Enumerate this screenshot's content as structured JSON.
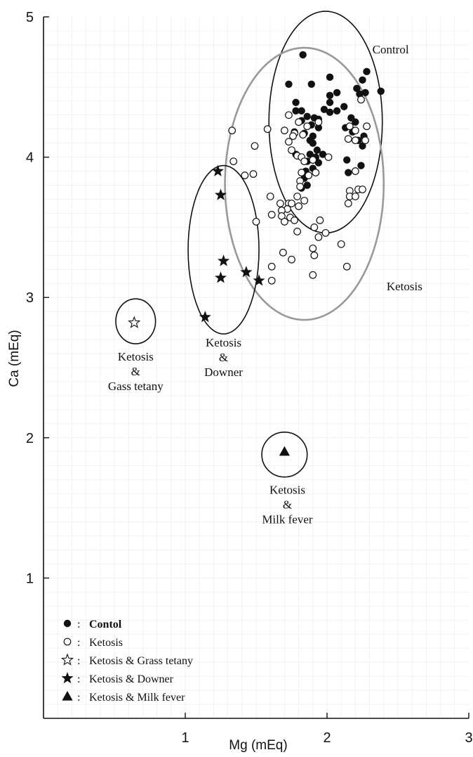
{
  "chart_data": {
    "type": "scatter",
    "title": "",
    "xlabel": "Mg (mEq)",
    "ylabel": "Ca (mEq)",
    "xlim": [
      0,
      3
    ],
    "ylim": [
      0,
      5
    ],
    "x_ticks": [
      "1",
      "2",
      "3"
    ],
    "y_ticks": [
      "1",
      "2",
      "3",
      "4",
      "5"
    ],
    "grid": true,
    "series": [
      {
        "name": "Contol",
        "marker": "filled-circle",
        "color": "#111111",
        "points": [
          [
            1.83,
            4.73
          ],
          [
            1.73,
            4.52
          ],
          [
            1.89,
            4.52
          ],
          [
            2.02,
            4.57
          ],
          [
            2.28,
            4.61
          ],
          [
            2.25,
            4.55
          ],
          [
            2.21,
            4.49
          ],
          [
            2.38,
            4.47
          ],
          [
            2.23,
            4.45
          ],
          [
            2.27,
            4.46
          ],
          [
            2.02,
            4.44
          ],
          [
            2.07,
            4.46
          ],
          [
            2.02,
            4.39
          ],
          [
            1.78,
            4.39
          ],
          [
            1.78,
            4.33
          ],
          [
            1.82,
            4.33
          ],
          [
            1.98,
            4.34
          ],
          [
            2.02,
            4.32
          ],
          [
            2.07,
            4.33
          ],
          [
            2.12,
            4.36
          ],
          [
            1.86,
            4.29
          ],
          [
            1.91,
            4.28
          ],
          [
            1.82,
            4.26
          ],
          [
            1.94,
            4.27
          ],
          [
            2.17,
            4.28
          ],
          [
            2.2,
            4.25
          ],
          [
            1.89,
            4.23
          ],
          [
            2.13,
            4.21
          ],
          [
            1.94,
            4.21
          ],
          [
            1.77,
            4.18
          ],
          [
            1.84,
            4.17
          ],
          [
            1.9,
            4.15
          ],
          [
            2.18,
            4.18
          ],
          [
            2.26,
            4.15
          ],
          [
            1.88,
            4.12
          ],
          [
            2.22,
            4.12
          ],
          [
            1.78,
            4.02
          ],
          [
            1.9,
            4.1
          ],
          [
            1.93,
            4.05
          ],
          [
            1.88,
            4.02
          ],
          [
            1.92,
            4.0
          ],
          [
            1.86,
            3.97
          ],
          [
            1.94,
            3.96
          ],
          [
            1.97,
            4.02
          ],
          [
            2.25,
            4.08
          ],
          [
            1.9,
            3.92
          ],
          [
            1.85,
            3.9
          ],
          [
            1.84,
            3.85
          ],
          [
            1.86,
            3.8
          ],
          [
            1.82,
            3.78
          ],
          [
            2.15,
            3.89
          ],
          [
            2.24,
            3.94
          ],
          [
            2.14,
            3.98
          ]
        ]
      },
      {
        "name": "Ketosis",
        "marker": "open-circle",
        "color": "#111111",
        "points": [
          [
            1.33,
            4.19
          ],
          [
            1.58,
            4.2
          ],
          [
            1.73,
            4.3
          ],
          [
            1.8,
            4.25
          ],
          [
            1.86,
            4.22
          ],
          [
            1.94,
            4.25
          ],
          [
            1.7,
            4.19
          ],
          [
            1.77,
            4.17
          ],
          [
            1.73,
            4.11
          ],
          [
            1.76,
            4.15
          ],
          [
            1.83,
            4.16
          ],
          [
            1.75,
            4.05
          ],
          [
            1.79,
            4.01
          ],
          [
            1.82,
            4.0
          ],
          [
            2.01,
            4.0
          ],
          [
            2.16,
            4.22
          ],
          [
            2.2,
            4.19
          ],
          [
            2.15,
            4.13
          ],
          [
            2.2,
            4.12
          ],
          [
            2.28,
            4.22
          ],
          [
            2.27,
            4.12
          ],
          [
            2.24,
            4.41
          ],
          [
            1.49,
            4.08
          ],
          [
            1.34,
            3.97
          ],
          [
            1.84,
            3.97
          ],
          [
            1.9,
            3.98
          ],
          [
            1.82,
            3.89
          ],
          [
            1.92,
            3.89
          ],
          [
            1.87,
            3.87
          ],
          [
            1.48,
            3.88
          ],
          [
            1.42,
            3.87
          ],
          [
            1.81,
            3.83
          ],
          [
            1.81,
            3.79
          ],
          [
            2.2,
            3.9
          ],
          [
            2.16,
            3.76
          ],
          [
            2.16,
            3.72
          ],
          [
            2.22,
            3.77
          ],
          [
            2.25,
            3.77
          ],
          [
            2.2,
            3.72
          ],
          [
            2.15,
            3.67
          ],
          [
            1.79,
            3.72
          ],
          [
            1.6,
            3.72
          ],
          [
            1.67,
            3.67
          ],
          [
            1.73,
            3.67
          ],
          [
            1.75,
            3.67
          ],
          [
            1.72,
            3.63
          ],
          [
            1.68,
            3.62
          ],
          [
            1.74,
            3.57
          ],
          [
            1.84,
            3.69
          ],
          [
            1.8,
            3.65
          ],
          [
            1.61,
            3.59
          ],
          [
            1.68,
            3.58
          ],
          [
            1.7,
            3.54
          ],
          [
            1.77,
            3.55
          ],
          [
            1.5,
            3.54
          ],
          [
            1.95,
            3.55
          ],
          [
            1.91,
            3.5
          ],
          [
            1.94,
            3.43
          ],
          [
            1.99,
            3.46
          ],
          [
            2.1,
            3.38
          ],
          [
            1.79,
            3.47
          ],
          [
            1.9,
            3.35
          ],
          [
            1.91,
            3.3
          ],
          [
            1.69,
            3.32
          ],
          [
            1.75,
            3.27
          ],
          [
            1.61,
            3.22
          ],
          [
            1.9,
            3.16
          ],
          [
            1.61,
            3.12
          ],
          [
            2.14,
            3.22
          ]
        ]
      },
      {
        "name": "Ketosis & Grass tetany",
        "marker": "open-star",
        "color": "#111111",
        "points": [
          [
            0.64,
            2.82
          ]
        ]
      },
      {
        "name": "Ketosis & Downer",
        "marker": "filled-star",
        "color": "#111111",
        "points": [
          [
            1.23,
            3.9
          ],
          [
            1.25,
            3.73
          ],
          [
            1.27,
            3.26
          ],
          [
            1.25,
            3.14
          ],
          [
            1.43,
            3.18
          ],
          [
            1.52,
            3.12
          ],
          [
            1.14,
            2.86
          ]
        ]
      },
      {
        "name": "Ketosis & Milk fever",
        "marker": "filled-triangle",
        "color": "#111111",
        "points": [
          [
            1.7,
            1.9
          ]
        ]
      }
    ],
    "groups": [
      {
        "label": "Control",
        "color": "#111111",
        "center": [
          1.99,
          4.25
        ],
        "radius": [
          0.4,
          0.79
        ],
        "label_lines": [
          "Control"
        ],
        "label_pos": [
          2.32,
          4.74
        ],
        "label_anchor": "start"
      },
      {
        "label": "Ketosis",
        "color": "#999999",
        "center": [
          1.84,
          3.81
        ],
        "radius": [
          0.56,
          0.97
        ],
        "label_lines": [
          "Ketosis"
        ],
        "label_pos": [
          2.42,
          3.05
        ],
        "label_anchor": "start"
      },
      {
        "label": "Ketosis & Downer",
        "color": "#111111",
        "center": [
          1.27,
          3.34
        ],
        "radius": [
          0.25,
          0.6
        ],
        "label_lines": [
          "Ketosis",
          "&",
          "Downer"
        ],
        "label_pos": [
          1.27,
          2.65
        ],
        "label_anchor": "middle"
      },
      {
        "label": "Ketosis & Gass tetany",
        "color": "#111111",
        "center": [
          0.65,
          2.83
        ],
        "radius": [
          0.14,
          0.16
        ],
        "label_lines": [
          "Ketosis",
          "&",
          "Gass tetany"
        ],
        "label_pos": [
          0.65,
          2.55
        ],
        "label_anchor": "middle"
      },
      {
        "label": "Ketosis & Milk fever",
        "color": "#111111",
        "center": [
          1.7,
          1.88
        ],
        "radius": [
          0.16,
          0.16
        ],
        "label_lines": [
          "Ketosis",
          "&",
          "Milk fever"
        ],
        "label_pos": [
          1.72,
          1.6
        ],
        "label_anchor": "middle"
      }
    ],
    "legend": {
      "position": "bottom-left",
      "entries": [
        {
          "marker": "filled-circle",
          "label": "Contol",
          "bold": true
        },
        {
          "marker": "open-circle",
          "label": "Ketosis",
          "bold": false
        },
        {
          "marker": "open-star",
          "label": "Ketosis & Grass tetany",
          "bold": false
        },
        {
          "marker": "filled-star",
          "label": "Ketosis & Downer",
          "bold": false
        },
        {
          "marker": "filled-triangle",
          "label": "Ketosis & Milk fever",
          "bold": false
        }
      ],
      "separator": ":"
    }
  }
}
